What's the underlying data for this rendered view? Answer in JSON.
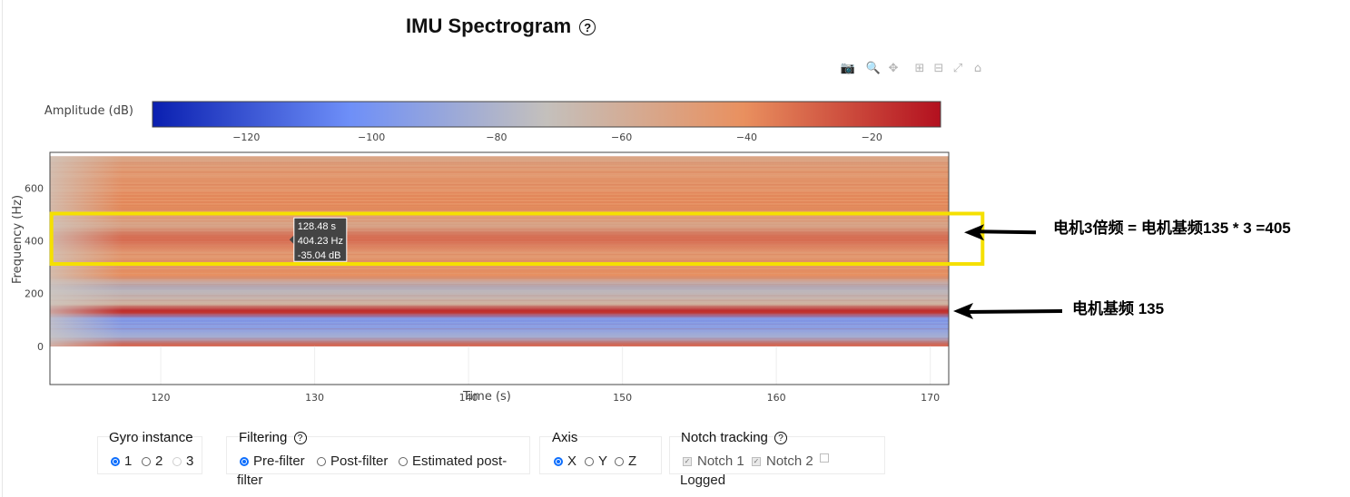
{
  "title": "IMU Spectrogram",
  "help_glyph": "?",
  "modebar": [
    "camera-icon",
    "zoom-icon",
    "pan-icon",
    "zoom-in-icon",
    "zoom-out-icon",
    "autoscale-icon",
    "reset-axes-icon"
  ],
  "modebar_glyphs": {
    "camera-icon": "📷",
    "zoom-icon": "🔍",
    "pan-icon": "✥",
    "zoom-in-icon": "⊞",
    "zoom-out-icon": "⊟",
    "autoscale-icon": "⤢",
    "reset-axes-icon": "⌂"
  },
  "colorbar": {
    "label": "Amplitude (dB)",
    "range": [
      -135,
      -9
    ],
    "ticks": [
      -120,
      -100,
      -80,
      -60,
      -40,
      -20
    ],
    "tick_labels": [
      "−120",
      "−100",
      "−80",
      "−60",
      "−40",
      "−20"
    ],
    "colors": [
      "#0a1fb0",
      "#6e8ff8",
      "#c4c0bc",
      "#e9905f",
      "#b3101f"
    ]
  },
  "chart_data": {
    "type": "heatmap",
    "title": "IMU Spectrogram",
    "xlabel": "Time (s)",
    "ylabel": "Frequency (Hz)",
    "xlim": [
      112.8,
      171.2
    ],
    "ylim": [
      -145,
      735
    ],
    "data_y_range": [
      0,
      720
    ],
    "xticks": [
      120,
      130,
      140,
      150,
      160,
      170
    ],
    "yticks": [
      0,
      200,
      400,
      600
    ],
    "bands": [
      {
        "y": 3,
        "db": -28
      },
      {
        "y": 35,
        "db": -85
      },
      {
        "y": 75,
        "db": -95
      },
      {
        "y": 105,
        "db": -98
      },
      {
        "y": 128,
        "db": -18
      },
      {
        "y": 138,
        "db": -15
      },
      {
        "y": 160,
        "db": -62
      },
      {
        "y": 225,
        "db": -78
      },
      {
        "y": 270,
        "db": -40
      },
      {
        "y": 300,
        "db": -45
      },
      {
        "y": 350,
        "db": -46
      },
      {
        "y": 404,
        "db": -30
      },
      {
        "y": 460,
        "db": -55
      },
      {
        "y": 520,
        "db": -42
      },
      {
        "y": 560,
        "db": -40
      },
      {
        "y": 605,
        "db": -44
      },
      {
        "y": 660,
        "db": -46
      },
      {
        "y": 710,
        "db": -52
      }
    ],
    "hover": {
      "time": "128.48 s",
      "freq": "404.23 Hz",
      "amp": "-35.04 dB",
      "x": 128.48,
      "y": 404.23
    }
  },
  "highlight_box": {
    "x0": 112.9,
    "x1": 173.4,
    "y0": 312,
    "y1": 503,
    "color": "#f5e000"
  },
  "annotations": [
    {
      "text": "电机3倍频 = 电机基频135 * 3 =405",
      "target_y": 404
    },
    {
      "text": "电机基频 135",
      "target_y": 135
    }
  ],
  "controls": {
    "gyro": {
      "title": "Gyro instance",
      "options": [
        "1",
        "2",
        "3"
      ]
    },
    "filtering": {
      "title": "Filtering",
      "options": [
        "Pre-filter",
        "Post-filter",
        "Estimated post-"
      ],
      "wrap": "filter"
    },
    "axis": {
      "title": "Axis",
      "options": [
        "X",
        "Y",
        "Z"
      ]
    },
    "notch": {
      "title": "Notch tracking",
      "options": [
        "Notch 1",
        "Notch 2"
      ],
      "logged": "Logged"
    }
  }
}
